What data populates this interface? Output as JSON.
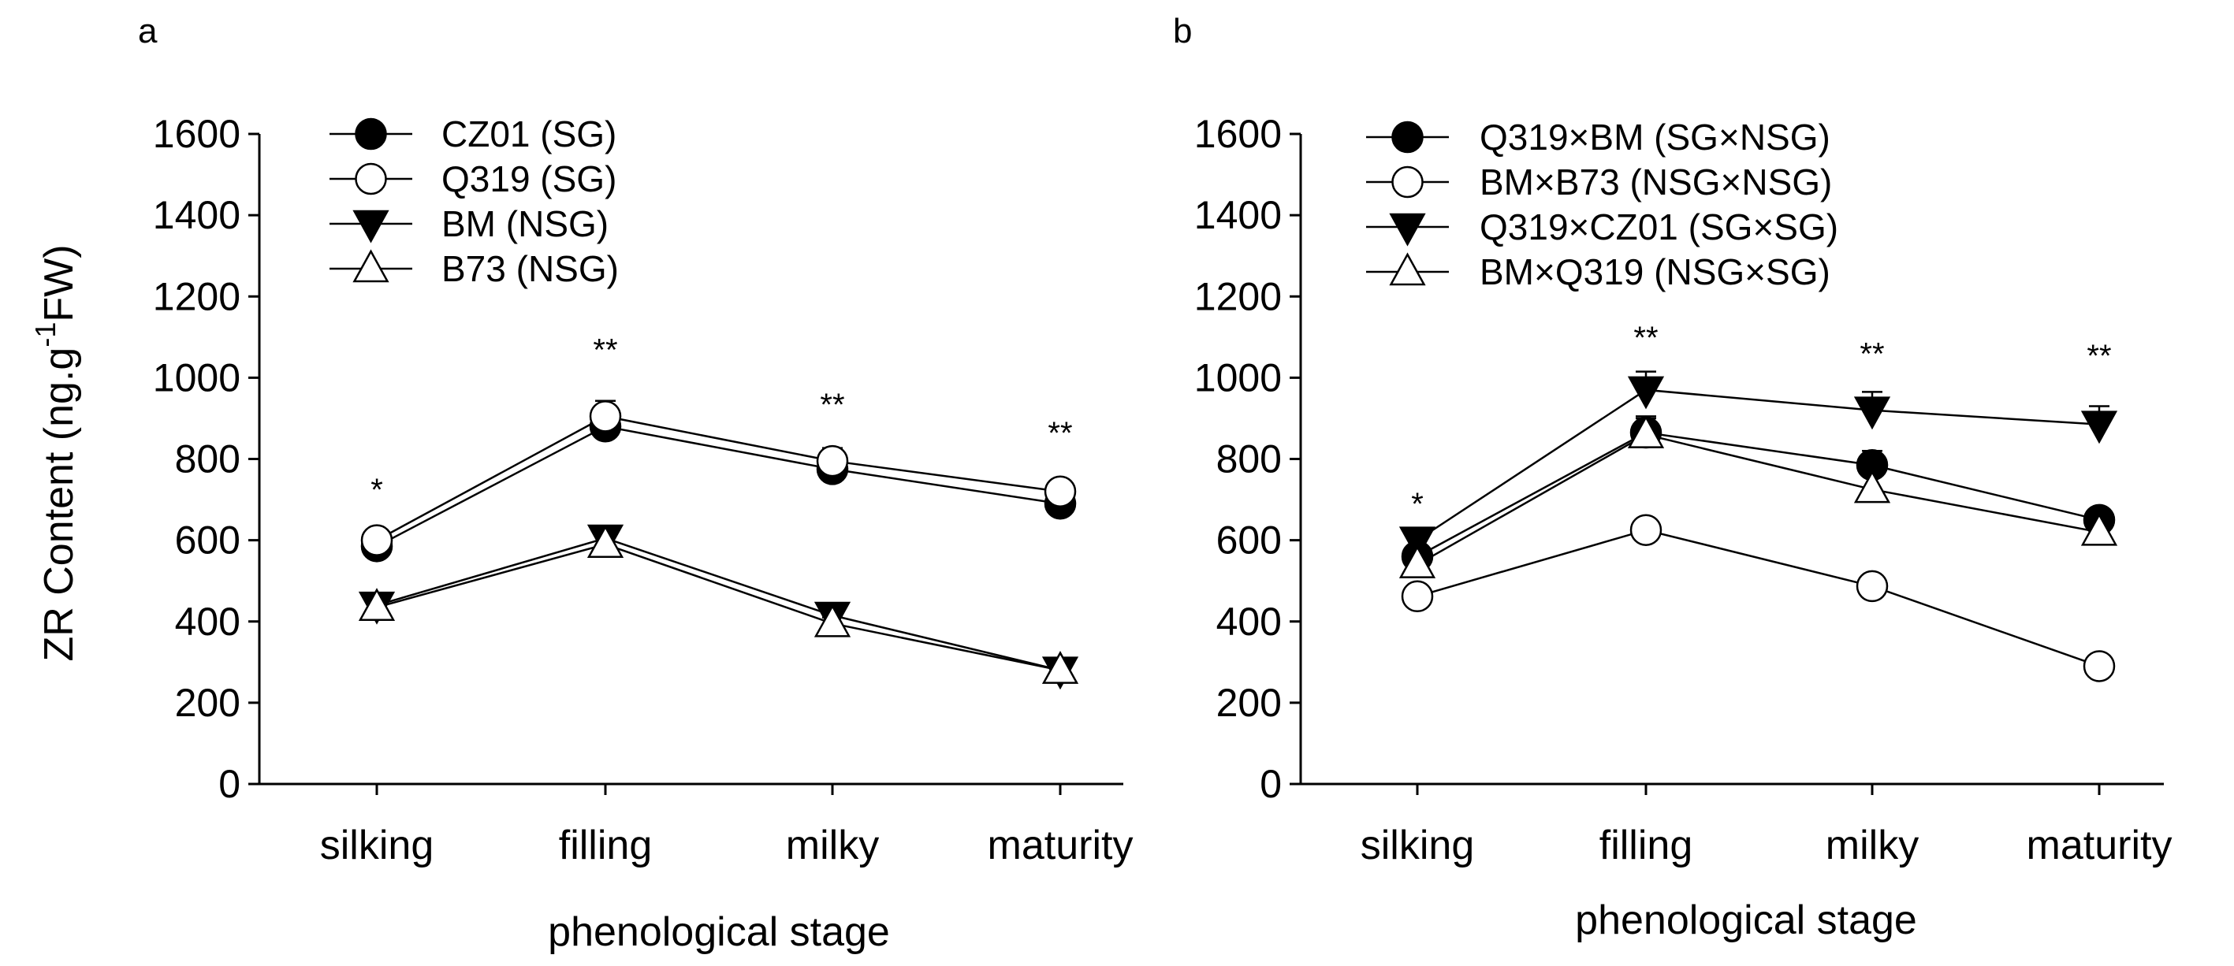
{
  "figure": {
    "ylabel_main": "ZR Content (ng.g",
    "ylabel_sup": "-1",
    "ylabel_end": "FW)"
  },
  "chart_data": [
    {
      "type": "line",
      "panel": "a",
      "xlabel": "phenological stage",
      "ylabel": "ZR Content (ng.g-1FW)",
      "categories": [
        "silking",
        "filling",
        "milky",
        "maturity"
      ],
      "ylim": [
        0,
        1600
      ],
      "yticks": [
        0,
        200,
        400,
        600,
        800,
        1000,
        1200,
        1400,
        1600
      ],
      "legend_position": "top-left",
      "series": [
        {
          "name": "CZ01 (SG)",
          "marker": "filled-circle",
          "values": [
            585,
            880,
            775,
            690
          ],
          "errors": [
            15,
            30,
            30,
            28
          ]
        },
        {
          "name": "Q319 (SG)",
          "marker": "open-circle",
          "values": [
            600,
            905,
            795,
            720
          ],
          "errors": [
            15,
            38,
            32,
            22
          ]
        },
        {
          "name": "BM (NSG)",
          "marker": "filled-triangle-down",
          "values": [
            440,
            605,
            415,
            280
          ],
          "errors": [
            12,
            25,
            15,
            12
          ]
        },
        {
          "name": "B73 (NSG)",
          "marker": "open-triangle-up",
          "values": [
            435,
            590,
            395,
            280
          ],
          "errors": [
            12,
            25,
            15,
            12
          ]
        }
      ],
      "significance": [
        {
          "category": "silking",
          "label": "*",
          "y": 725
        },
        {
          "category": "filling",
          "label": "**",
          "y": 1070
        },
        {
          "category": "milky",
          "label": "**",
          "y": 935
        },
        {
          "category": "maturity",
          "label": "**",
          "y": 865
        }
      ]
    },
    {
      "type": "line",
      "panel": "b",
      "xlabel": "phenological stage",
      "ylabel": "ZR Content (ng.g-1FW)",
      "categories": [
        "silking",
        "filling",
        "milky",
        "maturity"
      ],
      "ylim": [
        0,
        1600
      ],
      "yticks": [
        0,
        200,
        400,
        600,
        800,
        1000,
        1200,
        1400,
        1600
      ],
      "legend_position": "top-left",
      "series": [
        {
          "name": "Q319×BM (SG×NSG)",
          "marker": "filled-circle",
          "values": [
            560,
            865,
            785,
            650
          ],
          "errors": [
            20,
            40,
            35,
            25
          ]
        },
        {
          "name": "BM×B73 (NSG×NSG)",
          "marker": "open-circle",
          "values": [
            462,
            625,
            487,
            290
          ],
          "errors": [
            12,
            15,
            15,
            12
          ]
        },
        {
          "name": "Q319×CZ01 (SG×SG)",
          "marker": "filled-triangle-down",
          "values": [
            600,
            970,
            920,
            885
          ],
          "errors": [
            30,
            45,
            45,
            45
          ]
        },
        {
          "name": "BM×Q319 (NSG×SG)",
          "marker": "open-triangle-up",
          "values": [
            540,
            860,
            725,
            620
          ],
          "errors": [
            20,
            40,
            35,
            35
          ]
        }
      ],
      "significance": [
        {
          "category": "silking",
          "label": "*",
          "y": 690
        },
        {
          "category": "filling",
          "label": "**",
          "y": 1100
        },
        {
          "category": "milky",
          "label": "**",
          "y": 1060
        },
        {
          "category": "maturity",
          "label": "**",
          "y": 1055
        }
      ]
    }
  ]
}
